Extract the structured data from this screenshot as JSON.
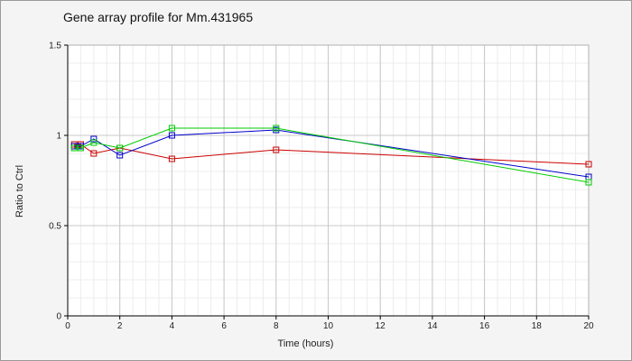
{
  "title": "Gene array profile for Mm.431965",
  "colors": {
    "background": "#f4f4f4",
    "plot_background": "#ffffff",
    "major_grid": "#c8c8c8",
    "minor_grid": "#ececec"
  },
  "chart_data": {
    "type": "line",
    "title": "Gene array profile for Mm.431965",
    "xlabel": "Time (hours)",
    "ylabel": "Ratio to Ctrl",
    "xlim": [
      0,
      20
    ],
    "ylim": [
      0,
      1.5
    ],
    "x_ticks": [
      0,
      2,
      4,
      6,
      8,
      10,
      12,
      14,
      16,
      18,
      20
    ],
    "y_ticks": [
      0,
      0.5,
      1,
      1.5
    ],
    "x_tick_labels": [
      "0",
      "2",
      "4",
      "6",
      "8",
      "10",
      "12",
      "14",
      "16",
      "18",
      "20"
    ],
    "y_tick_labels": [
      "0",
      "0.5",
      "1",
      "1.5"
    ],
    "grid": true,
    "marker": "square",
    "series": [
      {
        "color": "#cc0000",
        "x": [
          0.25,
          0.5,
          1,
          2,
          4,
          8,
          20
        ],
        "y": [
          0.95,
          0.95,
          0.9,
          0.93,
          0.87,
          0.92,
          0.84
        ]
      },
      {
        "color": "#0000cc",
        "x": [
          0.25,
          0.5,
          1,
          2,
          4,
          8,
          20
        ],
        "y": [
          0.94,
          0.94,
          0.98,
          0.89,
          1.0,
          1.03,
          0.77
        ]
      },
      {
        "color": "#00cc00",
        "x": [
          0.25,
          0.5,
          1,
          2,
          4,
          8,
          20
        ],
        "y": [
          0.93,
          0.93,
          0.96,
          0.93,
          1.04,
          1.04,
          0.74
        ]
      }
    ]
  }
}
